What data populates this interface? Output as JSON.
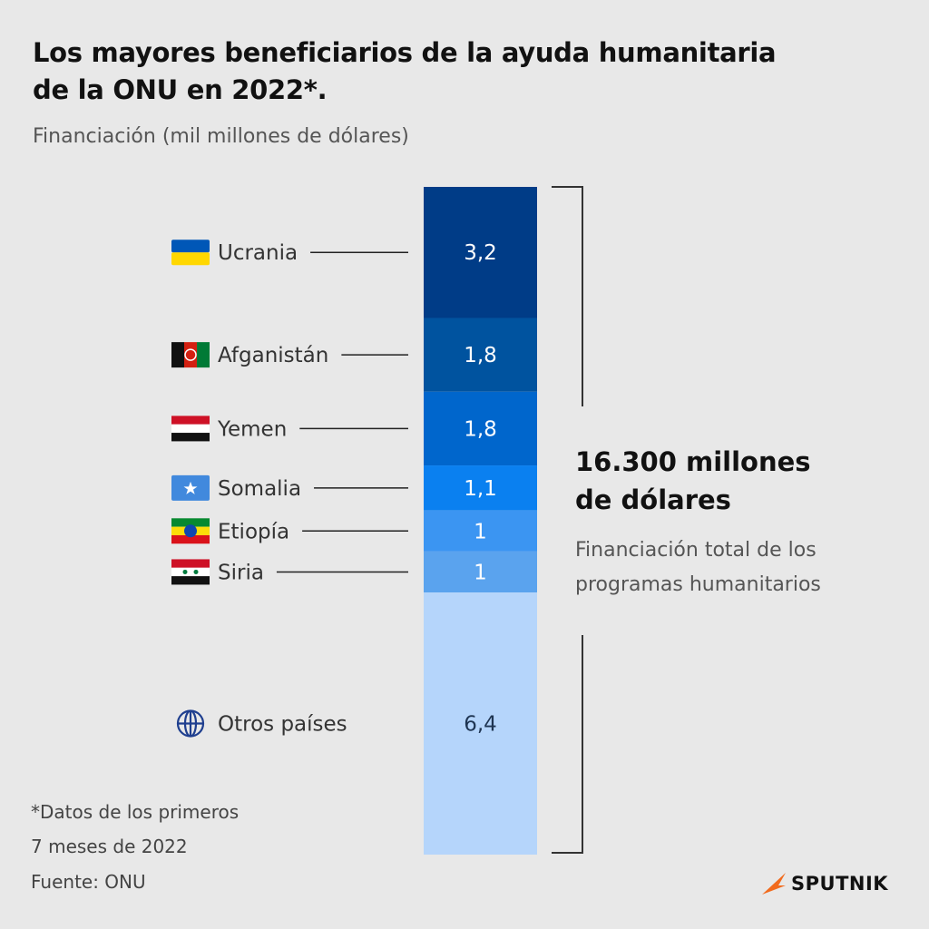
{
  "title_line1": "Los mayores beneficiarios de la ayuda humanitaria",
  "title_line2": "de la ONU en 2022*.",
  "subtitle": "Financiación (mil millones de dólares)",
  "chart_data": {
    "type": "bar",
    "stacked": true,
    "categories": [
      "Ucrania",
      "Afganistán",
      "Yemen",
      "Somalia",
      "Etiopía",
      "Siria",
      "Otros países"
    ],
    "values": [
      3.2,
      1.8,
      1.8,
      1.1,
      1,
      1,
      6.4
    ],
    "value_labels": [
      "3,2",
      "1,8",
      "1,8",
      "1,1",
      "1",
      "1",
      "6,4"
    ],
    "colors": [
      "#003c87",
      "#00539f",
      "#0066cc",
      "#0a80f0",
      "#3b95f2",
      "#5aa3ee",
      "#b5d5fb"
    ],
    "icons": [
      "ukraine-flag-icon",
      "afghanistan-flag-icon",
      "yemen-flag-icon",
      "somalia-flag-icon",
      "ethiopia-flag-icon",
      "syria-flag-icon",
      "globe-icon"
    ]
  },
  "total": {
    "value_line1": "16.300 millones",
    "value_line2": "de dólares",
    "desc_line1": "Financiación total de los",
    "desc_line2": "programas humanitarios"
  },
  "note_line1": "*Datos de los primeros",
  "note_line2": "7 meses de 2022",
  "source": "Fuente: ONU",
  "brand": "SPUTNIK",
  "brand_color": "#f26b1d"
}
